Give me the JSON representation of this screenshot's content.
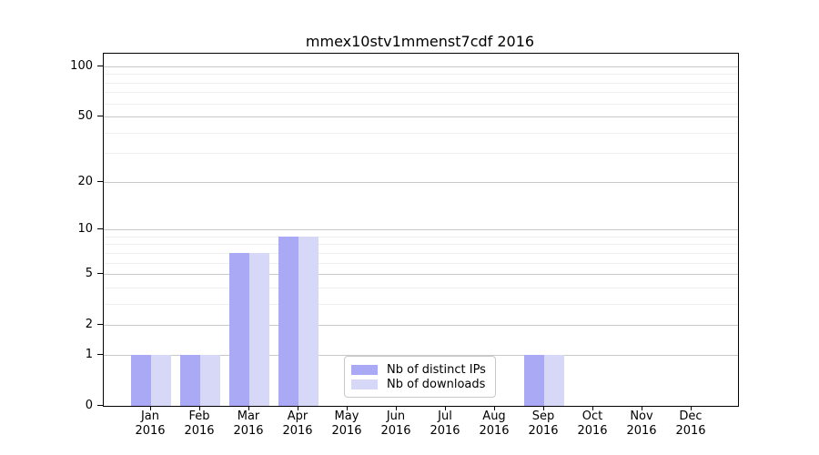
{
  "title": "mmex10stv1mmenst7cdf 2016",
  "colors": {
    "distinct_ips": "#a9a9f5",
    "downloads": "#d7d7f8",
    "grid_major": "#c9c9c9",
    "grid_minor": "#efefef",
    "axis": "#000000"
  },
  "legend": {
    "entries": [
      {
        "label": "Nb of distinct IPs",
        "color_key": "distinct_ips"
      },
      {
        "label": "Nb of downloads",
        "color_key": "downloads"
      }
    ]
  },
  "chart_data": {
    "type": "bar",
    "title": "mmex10stv1mmenst7cdf 2016",
    "categories": [
      "Jan 2016",
      "Feb 2016",
      "Mar 2016",
      "Apr 2016",
      "May 2016",
      "Jun 2016",
      "Jul 2016",
      "Aug 2016",
      "Sep 2016",
      "Oct 2016",
      "Nov 2016",
      "Dec 2016"
    ],
    "x_tick_line1": [
      "Jan",
      "Feb",
      "Mar",
      "Apr",
      "May",
      "Jun",
      "Jul",
      "Aug",
      "Sep",
      "Oct",
      "Nov",
      "Dec"
    ],
    "x_tick_line2": [
      "2016",
      "2016",
      "2016",
      "2016",
      "2016",
      "2016",
      "2016",
      "2016",
      "2016",
      "2016",
      "2016",
      "2016"
    ],
    "series": [
      {
        "name": "Nb of distinct IPs",
        "values": [
          1,
          1,
          7,
          9,
          0,
          0,
          0,
          0,
          1,
          0,
          0,
          0
        ]
      },
      {
        "name": "Nb of downloads",
        "values": [
          1,
          1,
          7,
          9,
          0,
          0,
          0,
          0,
          1,
          0,
          0,
          0
        ]
      }
    ],
    "xlabel": "",
    "ylabel": "",
    "yscale": "log1p",
    "ylim": [
      0,
      120
    ],
    "yticks": [
      0,
      1,
      2,
      5,
      10,
      20,
      50,
      100
    ],
    "ytick_labels": [
      "0",
      "1",
      "2",
      "5",
      "10",
      "20",
      "50",
      "100"
    ],
    "minor_gridlines": [
      3,
      4,
      6,
      7,
      8,
      9,
      30,
      40,
      60,
      70,
      80,
      90
    ],
    "grid": true,
    "legend_position": "lower center"
  }
}
